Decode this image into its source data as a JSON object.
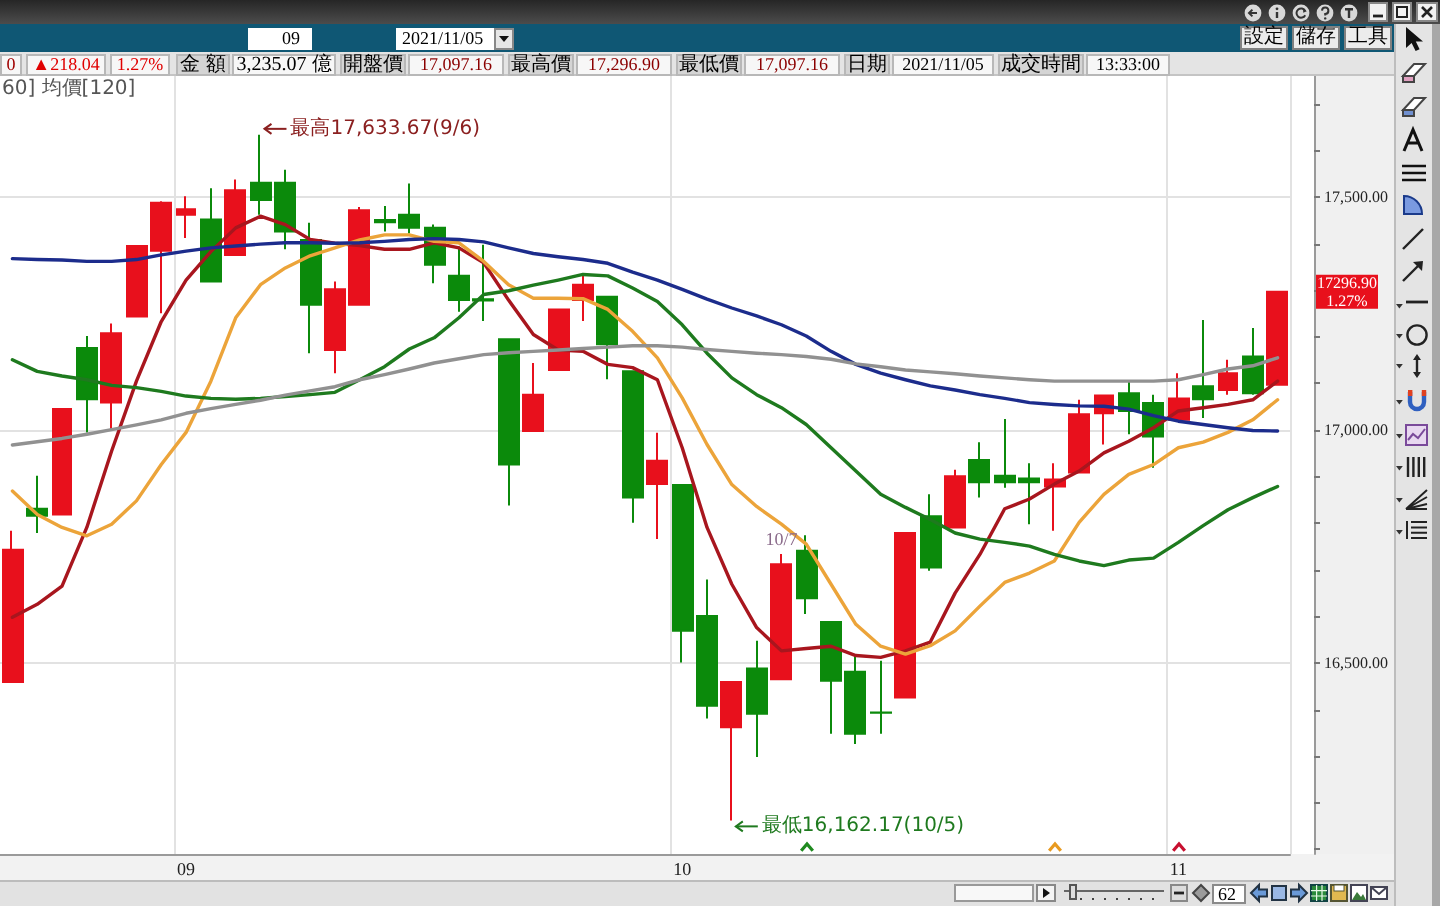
{
  "chart_data": {
    "type": "candlestick",
    "categories": [
      null,
      null,
      null,
      null,
      null,
      null,
      null,
      "09",
      null,
      null,
      null,
      null,
      null,
      null,
      null,
      null,
      null,
      null,
      null,
      null,
      null,
      null,
      null,
      null,
      null,
      null,
      null,
      "10",
      null,
      null,
      null,
      null,
      null,
      null,
      null,
      null,
      null,
      null,
      null,
      null,
      null,
      null,
      null,
      null,
      null,
      null,
      null,
      "11",
      null,
      null,
      null,
      null
    ],
    "ohlc": [
      [
        16459,
        16784,
        16459,
        16743
      ],
      [
        16831,
        16902,
        16779,
        16816
      ],
      [
        16819,
        17045,
        16819,
        17045
      ],
      [
        17176,
        17202,
        16995,
        17066
      ],
      [
        17059,
        17229,
        16998,
        17208
      ],
      [
        17244,
        17395,
        17244,
        17395
      ],
      [
        17385,
        17491,
        17251,
        17488
      ],
      [
        17462,
        17502,
        17412,
        17474
      ],
      [
        17452,
        17519,
        17319,
        17319
      ],
      [
        17376,
        17538,
        17376,
        17515
      ],
      [
        17531,
        17633.67,
        17462,
        17494
      ],
      [
        17531,
        17559,
        17388,
        17426
      ],
      [
        17408,
        17445,
        17165,
        17269
      ],
      [
        17172,
        17319,
        17122,
        17302
      ],
      [
        17269,
        17479,
        17269,
        17472
      ],
      [
        17451,
        17481,
        17426,
        17446
      ],
      [
        17462,
        17529,
        17422,
        17434
      ],
      [
        17434,
        17441,
        17315,
        17355
      ],
      [
        17331,
        17394,
        17254,
        17279
      ],
      [
        17281,
        17398,
        17234,
        17278
      ],
      [
        17195,
        17195,
        16838,
        16926
      ],
      [
        16998,
        17144,
        16998,
        17076
      ],
      [
        17129,
        17259,
        17129,
        17259
      ],
      [
        17279,
        17331,
        17234,
        17312
      ],
      [
        17286,
        17286,
        17109,
        17184
      ],
      [
        17126,
        17126,
        16801,
        16855
      ],
      [
        16884,
        16994,
        16766,
        16934
      ],
      [
        16882,
        16882,
        16501,
        16569
      ],
      [
        16601,
        16679,
        16381,
        16408
      ],
      [
        16362,
        16459,
        16162.17,
        16459
      ],
      [
        16488,
        16548,
        16298,
        16391
      ],
      [
        16465,
        16734,
        16465,
        16712
      ],
      [
        16741,
        16774,
        16605,
        16639
      ],
      [
        16588,
        16588,
        16348,
        16462
      ],
      [
        16481,
        16519,
        16326,
        16348
      ],
      [
        16394,
        16505,
        16348,
        16393
      ],
      [
        16426,
        16779,
        16426,
        16779
      ],
      [
        16815,
        16862,
        16698,
        16705
      ],
      [
        16791,
        16915,
        16791,
        16901
      ],
      [
        16936,
        16974,
        16855,
        16888
      ],
      [
        16902,
        17024,
        16876,
        16888
      ],
      [
        16896,
        16929,
        16798,
        16888
      ],
      [
        16879,
        16929,
        16784,
        16894
      ],
      [
        16909,
        17065,
        16909,
        17034
      ],
      [
        17036,
        17074,
        16969,
        17074
      ],
      [
        17079,
        17105,
        16991,
        17041
      ],
      [
        17058,
        17076,
        16919,
        16986
      ],
      [
        17022,
        17122,
        17022,
        17068
      ],
      [
        17094,
        17236,
        17026,
        17066
      ],
      [
        17086,
        17151,
        17076,
        17122
      ],
      [
        17158,
        17219,
        17076,
        17079
      ],
      [
        17097.16,
        17296.9,
        17097.16,
        17296.9
      ]
    ],
    "colors": [
      "#e8101c",
      "#0b8a0b",
      "#e8101c",
      "#0b8a0b",
      "#e8101c",
      "#e8101c",
      "#e8101c",
      "#e8101c",
      "#0b8a0b",
      "#e8101c",
      "#0b8a0b",
      "#0b8a0b",
      "#0b8a0b",
      "#e8101c",
      "#e8101c",
      "#0b8a0b",
      "#0b8a0b",
      "#0b8a0b",
      "#0b8a0b",
      "#0b8a0b",
      "#0b8a0b",
      "#e8101c",
      "#e8101c",
      "#e8101c",
      "#0b8a0b",
      "#0b8a0b",
      "#e8101c",
      "#0b8a0b",
      "#0b8a0b",
      "#e8101c",
      "#0b8a0b",
      "#e8101c",
      "#0b8a0b",
      "#0b8a0b",
      "#0b8a0b",
      "#0b8a0b",
      "#e8101c",
      "#0b8a0b",
      "#e8101c",
      "#0b8a0b",
      "#0b8a0b",
      "#0b8a0b",
      "#e8101c",
      "#e8101c",
      "#e8101c",
      "#0b8a0b",
      "#0b8a0b",
      "#e8101c",
      "#0b8a0b",
      "#e8101c",
      "#0b8a0b",
      "#e8101c"
    ],
    "series": [
      {
        "type": "line",
        "color": "#a8161e",
        "values": [
          16598,
          16626,
          16665,
          16791,
          16955,
          17105,
          17233,
          17322,
          17383,
          17434,
          17459,
          17441,
          17409,
          17401,
          17396,
          17388,
          17388,
          17402,
          17391,
          17359,
          17279,
          17205,
          17172,
          17169,
          17141,
          17134,
          17108,
          16962,
          16791,
          16669,
          16576,
          16526,
          16531,
          16536,
          16516,
          16512,
          16526,
          16545,
          16650,
          16733,
          16831,
          16852,
          16884,
          16912,
          16951,
          16976,
          17005,
          17041,
          17048,
          17055,
          17065,
          17105
        ]
      },
      {
        "type": "line",
        "color": "#eca43a",
        "values": [
          16869,
          16819,
          16791,
          16773,
          16798,
          16848,
          16926,
          16995,
          17105,
          17241,
          17312,
          17348,
          17374,
          17391,
          17408,
          17419,
          17419,
          17405,
          17402,
          17362,
          17312,
          17283,
          17283,
          17282,
          17259,
          17212,
          17155,
          17069,
          16969,
          16883,
          16836,
          16798,
          16755,
          16669,
          16583,
          16536,
          16519,
          16537,
          16569,
          16622,
          16673,
          16693,
          16719,
          16802,
          16862,
          16905,
          16926,
          16962,
          16974,
          16995,
          17022,
          17065
        ]
      },
      {
        "type": "line",
        "color": "#1e7a1e",
        "values": [
          17151,
          17126,
          17116,
          17108,
          17096,
          17091,
          17083,
          17073,
          17068,
          17066,
          17068,
          17072,
          17076,
          17081,
          17108,
          17136,
          17174,
          17198,
          17241,
          17291,
          17299,
          17311,
          17322,
          17334,
          17331,
          17305,
          17276,
          17226,
          17165,
          17112,
          17076,
          17048,
          17012,
          16962,
          16912,
          16862,
          16834,
          16808,
          16779,
          16766,
          16759,
          16751,
          16733,
          16719,
          16709,
          16721,
          16725,
          16759,
          16795,
          16829,
          16855,
          16879
        ]
      },
      {
        "type": "line",
        "color": "#1c2c8c",
        "values": [
          17368,
          17366,
          17365,
          17362,
          17362,
          17366,
          17376,
          17384,
          17391,
          17395,
          17399,
          17402,
          17402,
          17401,
          17402,
          17405,
          17409,
          17411,
          17409,
          17404,
          17391,
          17379,
          17372,
          17366,
          17358,
          17339,
          17322,
          17302,
          17281,
          17262,
          17245,
          17226,
          17202,
          17169,
          17141,
          17122,
          17108,
          17095,
          17086,
          17076,
          17068,
          17059,
          17055,
          17052,
          17051,
          17045,
          17031,
          17019,
          17012,
          17005,
          16999,
          16998
        ]
      },
      {
        "type": "line",
        "color": "#919191",
        "values": [
          16968,
          16975,
          16982,
          16991,
          17001,
          17011,
          17022,
          17036,
          17046,
          17055,
          17064,
          17075,
          17084,
          17093,
          17108,
          17119,
          17131,
          17144,
          17153,
          17162,
          17166,
          17169,
          17172,
          17175,
          17178,
          17181,
          17181,
          17178,
          17173,
          17169,
          17165,
          17162,
          17158,
          17152,
          17142,
          17136,
          17129,
          17125,
          17121,
          17116,
          17112,
          17108,
          17105,
          17105,
          17105,
          17105,
          17105,
          17108,
          17119,
          17131,
          17138,
          17155
        ]
      }
    ],
    "ylim": [
      16090,
      17760
    ],
    "yticks": [
      {
        "value": 16100,
        "label": null
      },
      {
        "value": 16200,
        "label": null
      },
      {
        "value": 16300,
        "label": null
      },
      {
        "value": 16400,
        "label": null
      },
      {
        "value": 16500,
        "label": "16,500.00"
      },
      {
        "value": 16600,
        "label": null
      },
      {
        "value": 16700,
        "label": null
      },
      {
        "value": 16800,
        "label": null
      },
      {
        "value": 16900,
        "label": null
      },
      {
        "value": 17000,
        "label": "17,000.00"
      },
      {
        "value": 17100,
        "label": null
      },
      {
        "value": 17200,
        "label": null
      },
      {
        "value": 17300,
        "label": null
      },
      {
        "value": 17400,
        "label": null
      },
      {
        "value": 17500,
        "label": "17,500.00"
      },
      {
        "value": 17600,
        "label": null
      },
      {
        "value": 17700,
        "label": null
      }
    ],
    "grid": true,
    "marker": "none",
    "line_style": "solid",
    "annotations": [
      "最高17,633.67(9/6)",
      "最低16,162.17(10/5)",
      {
        "text": "10/7",
        "y": 16734
      },
      "17296.90\n1.27%",
      "60] 均價[120]",
      "0",
      "▲218.04",
      "1.27%",
      "金 額",
      "3,235.07 億",
      "開盤價",
      "17,097.16",
      "最高價",
      "17,296.90",
      "最低價",
      "17,097.16",
      "日期",
      "2021/11/05",
      "成交時間",
      "13:33:00",
      "09",
      "2021/11/05",
      "設定",
      "儲存",
      "工具",
      "62"
    ]
  }
}
